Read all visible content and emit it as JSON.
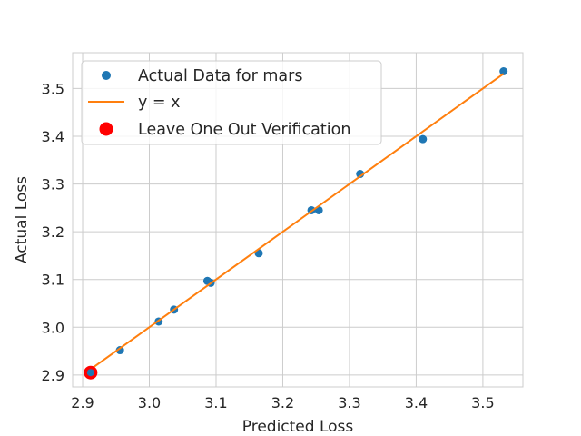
{
  "chart_data": {
    "type": "scatter",
    "title": "",
    "xlabel": "Predicted Loss",
    "ylabel": "Actual Loss",
    "xlim": [
      2.885,
      3.56
    ],
    "ylim": [
      2.875,
      3.575
    ],
    "x_ticks": [
      2.9,
      3.0,
      3.1,
      3.2,
      3.3,
      3.4,
      3.5
    ],
    "x_tick_labels": [
      "2.9",
      "3.0",
      "3.1",
      "3.2",
      "3.3",
      "3.4",
      "3.5"
    ],
    "y_ticks": [
      2.9,
      3.0,
      3.1,
      3.2,
      3.3,
      3.4,
      3.5
    ],
    "y_tick_labels": [
      "2.9",
      "3.0",
      "3.1",
      "3.2",
      "3.3",
      "3.4",
      "3.5"
    ],
    "grid": true,
    "legend_position": "top-left",
    "series": [
      {
        "name": "Actual Data for mars",
        "kind": "points",
        "color": "#1f77b4",
        "x": [
          2.912,
          2.956,
          3.014,
          3.037,
          3.087,
          3.092,
          3.164,
          3.243,
          3.254,
          3.316,
          3.41,
          3.531
        ],
        "y": [
          2.905,
          2.952,
          3.012,
          3.037,
          3.097,
          3.093,
          3.155,
          3.245,
          3.245,
          3.321,
          3.394,
          3.536
        ]
      },
      {
        "name": "y = x",
        "kind": "line",
        "color": "#ff7f0e",
        "x": [
          2.905,
          3.531
        ],
        "y": [
          2.905,
          3.531
        ]
      },
      {
        "name": "Leave One Out Verification",
        "kind": "highlight",
        "color": "#ff0000",
        "x": [
          2.912
        ],
        "y": [
          2.905
        ]
      }
    ]
  }
}
